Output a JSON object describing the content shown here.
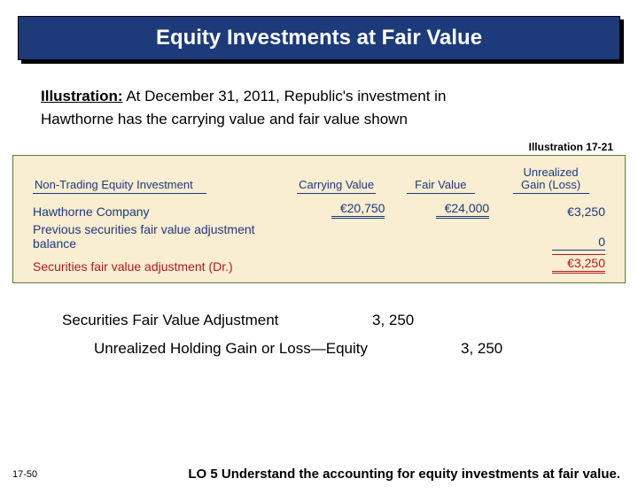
{
  "title": "Equity Investments at Fair Value",
  "intro": {
    "lead": "Illustration:",
    "text_a": "  At December 31, 2011, Republic's investment in",
    "text_b": "Hawthorne has the carrying value and fair value shown"
  },
  "illustration_label": "Illustration 17-21",
  "figure": {
    "background_color": "#f9edd2",
    "border_color": "#5a7a36",
    "text_color": "#1d3a7a",
    "total_color": "#b11a1a",
    "headers": {
      "name": "Non-Trading Equity Investment",
      "cv": "Carrying Value",
      "fv": "Fair Value",
      "gl_top": "Unrealized",
      "gl_bot": "Gain (Loss)"
    },
    "rows": {
      "company": {
        "name": "Hawthorne Company",
        "cv": "€20,750",
        "fv": "€24,000",
        "gl": "€3,250"
      },
      "prev": {
        "name": "Previous securities fair value adjustment balance",
        "gl": "0"
      },
      "total": {
        "name": "Securities fair value adjustment (Dr.)",
        "gl": "€3,250"
      }
    }
  },
  "journal_entry": {
    "line1": {
      "account": "Securities Fair Value Adjustment",
      "debit": "3, 250"
    },
    "line2": {
      "account": "Unrealized Holding Gain or Loss—Equity",
      "credit": "3, 250"
    }
  },
  "footer": "17-50",
  "lo": "LO 5  Understand the accounting for equity investments at fair value."
}
